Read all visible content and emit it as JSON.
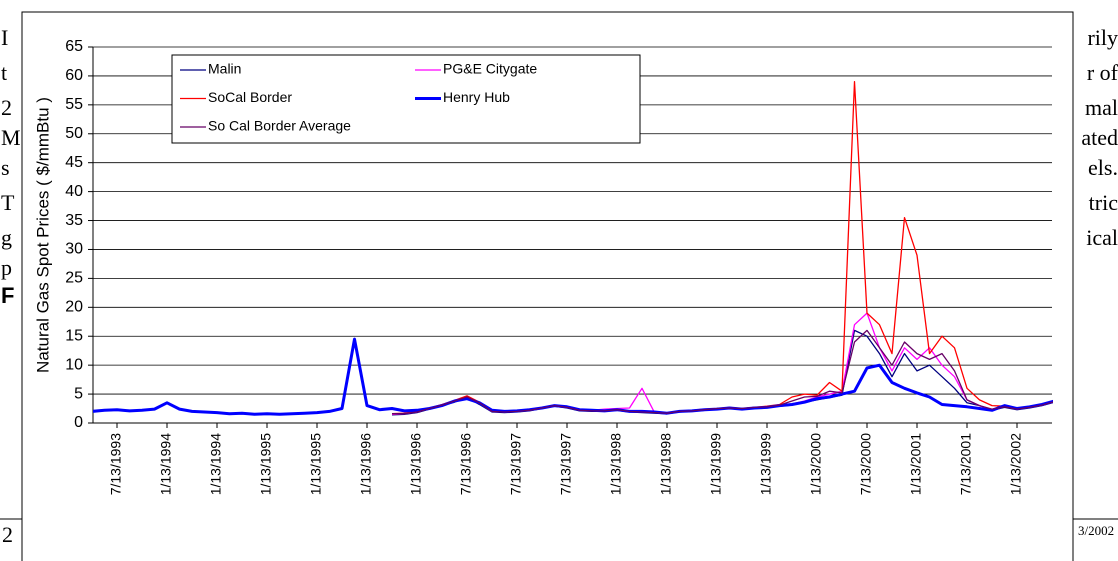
{
  "document": {
    "left_fragments": [
      "I",
      "t",
      "2",
      "M",
      "s",
      "T",
      "g",
      "p",
      "F"
    ],
    "right_fragments": [
      "rily",
      "r of",
      "mal",
      "ated",
      "els.",
      "tric",
      "ical"
    ],
    "footer_left": "2",
    "footer_right": "3/2002"
  },
  "chart_data": {
    "type": "line",
    "y_label": "Natural Gas Spot Prices ( $/mmBtu )",
    "categories": [
      null,
      null,
      "7/13/1993",
      null,
      null,
      null,
      "1/13/1994",
      null,
      null,
      null,
      "1/13/1994",
      null,
      null,
      null,
      "1/13/1995",
      null,
      null,
      null,
      "1/13/1995",
      null,
      null,
      null,
      "1/13/1996",
      null,
      null,
      null,
      "1/13/1996",
      null,
      null,
      null,
      "7/13/1996",
      null,
      null,
      null,
      "7/13/1997",
      null,
      null,
      null,
      "7/13/1997",
      null,
      null,
      null,
      "1/13/1998",
      null,
      null,
      null,
      "1/13/1998",
      null,
      null,
      null,
      "1/13/1999",
      null,
      null,
      null,
      "1/13/1999",
      null,
      null,
      null,
      "1/13/2000",
      null,
      null,
      null,
      "7/13/2000",
      null,
      null,
      null,
      "1/13/2001",
      null,
      null,
      null,
      "7/13/2001",
      null,
      null,
      null,
      "1/13/2002",
      null,
      null,
      null
    ],
    "series": [
      {
        "name": "Malin",
        "color": "#000080",
        "width": 1.3,
        "values": [
          null,
          null,
          null,
          null,
          null,
          null,
          null,
          null,
          null,
          null,
          null,
          null,
          null,
          null,
          null,
          null,
          null,
          null,
          null,
          null,
          null,
          null,
          null,
          null,
          1.4,
          1.5,
          1.8,
          2.4,
          3.0,
          3.6,
          4.4,
          3.2,
          1.9,
          1.8,
          1.9,
          2.1,
          2.5,
          2.9,
          2.6,
          2.1,
          2.0,
          2.0,
          2.2,
          1.9,
          1.8,
          1.7,
          1.6,
          1.9,
          2.0,
          2.2,
          2.4,
          2.5,
          2.4,
          2.6,
          2.7,
          2.9,
          3.1,
          3.6,
          4.0,
          4.4,
          4.8,
          16.0,
          15.0,
          12.0,
          8.0,
          12.0,
          9.0,
          10.0,
          8.0,
          6.0,
          3.5,
          3.0,
          2.2,
          2.7,
          2.3,
          2.6,
          3.0,
          3.6
        ]
      },
      {
        "name": "PG&E Citygate",
        "color": "#ff00ff",
        "width": 1.3,
        "values": [
          null,
          null,
          null,
          null,
          null,
          null,
          null,
          null,
          null,
          null,
          null,
          null,
          null,
          null,
          null,
          null,
          null,
          null,
          null,
          null,
          null,
          null,
          null,
          null,
          1.5,
          1.6,
          1.9,
          2.5,
          3.1,
          3.8,
          4.6,
          3.4,
          2.0,
          1.9,
          2.0,
          2.2,
          2.6,
          3.0,
          2.7,
          2.2,
          2.2,
          2.4,
          2.5,
          2.6,
          6.0,
          1.8,
          1.7,
          2.0,
          2.1,
          2.3,
          2.5,
          2.6,
          2.5,
          2.7,
          2.8,
          3.1,
          3.3,
          3.8,
          4.5,
          5.0,
          5.5,
          17.0,
          19.0,
          13.0,
          9.0,
          13.0,
          11.0,
          13.0,
          10.0,
          8.0,
          4.0,
          3.0,
          2.3,
          2.9,
          2.4,
          2.7,
          3.1,
          3.7
        ]
      },
      {
        "name": "SoCal Border",
        "color": "#ff0000",
        "width": 1.3,
        "values": [
          null,
          null,
          null,
          null,
          null,
          null,
          null,
          null,
          null,
          null,
          null,
          null,
          null,
          null,
          null,
          null,
          null,
          null,
          null,
          null,
          null,
          null,
          null,
          null,
          1.6,
          1.7,
          2.0,
          2.6,
          3.2,
          3.9,
          4.7,
          3.6,
          2.1,
          2.0,
          2.1,
          2.3,
          2.7,
          3.1,
          2.8,
          2.3,
          2.2,
          2.2,
          2.4,
          2.1,
          2.0,
          1.9,
          1.8,
          2.0,
          2.2,
          2.4,
          2.5,
          2.7,
          2.5,
          2.7,
          2.9,
          3.2,
          4.5,
          5.0,
          4.8,
          7.0,
          5.5,
          59.0,
          19.0,
          17.0,
          12.0,
          35.5,
          29.0,
          12.0,
          15.0,
          13.0,
          6.0,
          4.0,
          3.0,
          2.9,
          2.5,
          2.8,
          3.2,
          3.8
        ]
      },
      {
        "name": "Henry Hub",
        "color": "#0000ff",
        "width": 3,
        "values": [
          2.0,
          2.2,
          2.3,
          2.1,
          2.2,
          2.4,
          3.5,
          2.4,
          2.0,
          1.9,
          1.8,
          1.6,
          1.7,
          1.5,
          1.6,
          1.5,
          1.6,
          1.7,
          1.8,
          2.0,
          2.5,
          14.5,
          3.0,
          2.3,
          2.5,
          2.1,
          2.2,
          2.5,
          3.0,
          3.8,
          4.2,
          3.5,
          2.2,
          2.0,
          2.1,
          2.3,
          2.6,
          3.0,
          2.8,
          2.3,
          2.2,
          2.1,
          2.3,
          2.0,
          2.0,
          1.9,
          1.7,
          2.0,
          2.1,
          2.3,
          2.4,
          2.6,
          2.4,
          2.6,
          2.7,
          3.0,
          3.2,
          3.6,
          4.2,
          4.5,
          5.0,
          5.5,
          9.5,
          10.0,
          7.0,
          6.0,
          5.2,
          4.5,
          3.2,
          3.0,
          2.8,
          2.5,
          2.2,
          3.0,
          2.5,
          2.8,
          3.2,
          3.8
        ]
      },
      {
        "name": "So Cal Border Average",
        "color": "#660066",
        "width": 1.3,
        "values": [
          null,
          null,
          null,
          null,
          null,
          null,
          null,
          null,
          null,
          null,
          null,
          null,
          null,
          null,
          null,
          null,
          null,
          null,
          null,
          null,
          null,
          null,
          null,
          null,
          1.6,
          1.6,
          1.9,
          2.5,
          3.1,
          3.8,
          4.5,
          3.5,
          2.0,
          1.9,
          2.0,
          2.2,
          2.6,
          3.0,
          2.7,
          2.2,
          2.1,
          2.1,
          2.3,
          2.0,
          1.9,
          1.8,
          1.7,
          2.0,
          2.1,
          2.3,
          2.5,
          2.6,
          2.5,
          2.7,
          2.8,
          3.1,
          3.8,
          4.5,
          4.6,
          5.5,
          5.2,
          14.0,
          16.0,
          13.0,
          10.0,
          14.0,
          12.0,
          11.0,
          12.0,
          9.0,
          4.0,
          3.0,
          2.4,
          2.8,
          2.4,
          2.7,
          3.1,
          3.7
        ]
      }
    ],
    "ylim": [
      0,
      65
    ],
    "yticks": [
      0,
      5,
      10,
      15,
      20,
      25,
      30,
      35,
      40,
      45,
      50,
      55,
      60,
      65
    ],
    "grid": true
  }
}
